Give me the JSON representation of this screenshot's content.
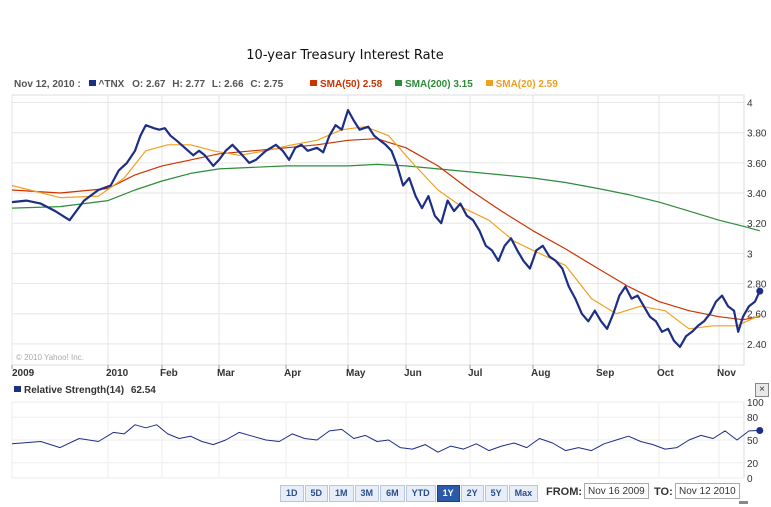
{
  "chart_data": [
    {
      "type": "line",
      "title": "10-year  Treasury Interest Rate",
      "ticker": "^TNX",
      "quote": {
        "date": "Nov 12, 2010 :",
        "open": "2.67",
        "high": "2.77",
        "low": "2.66",
        "close": "2.75"
      },
      "x_ticks": [
        "2009",
        "2010",
        "Feb",
        "Mar",
        "Apr",
        "May",
        "Jun",
        "Jul",
        "Aug",
        "Sep",
        "Oct",
        "Nov"
      ],
      "y_ticks": [
        2.4,
        2.6,
        2.8,
        3.0,
        3.2,
        3.4,
        3.6,
        3.8,
        4.0
      ],
      "y_tick_labels": [
        "2.40",
        "2.60",
        "2.80",
        "3",
        "3.20",
        "3.40",
        "3.60",
        "3.80",
        "4"
      ],
      "ylim": [
        2.26,
        4.05
      ],
      "x_range_months": [
        0,
        12
      ],
      "copyright": "© 2010 Yahoo! Inc.",
      "series": [
        {
          "name": "^TNX",
          "label": "^TNX",
          "color": "#1c2e85",
          "points": [
            [
              0,
              3.34
            ],
            [
              0.15,
              3.35
            ],
            [
              0.3,
              3.33
            ],
            [
              0.45,
              3.28
            ],
            [
              0.6,
              3.22
            ],
            [
              0.75,
              3.35
            ],
            [
              0.9,
              3.42
            ],
            [
              1.05,
              3.45
            ],
            [
              1.2,
              3.55
            ],
            [
              1.35,
              3.6
            ],
            [
              1.5,
              3.68
            ],
            [
              1.6,
              3.78
            ],
            [
              1.7,
              3.85
            ],
            [
              1.85,
              3.83
            ],
            [
              1.95,
              3.82
            ],
            [
              2.05,
              3.83
            ],
            [
              2.15,
              3.78
            ],
            [
              2.25,
              3.75
            ],
            [
              2.4,
              3.7
            ],
            [
              2.55,
              3.65
            ],
            [
              2.65,
              3.68
            ],
            [
              2.75,
              3.65
            ],
            [
              2.9,
              3.58
            ],
            [
              3.0,
              3.62
            ],
            [
              3.1,
              3.68
            ],
            [
              3.2,
              3.72
            ],
            [
              3.35,
              3.65
            ],
            [
              3.45,
              3.6
            ],
            [
              3.55,
              3.62
            ],
            [
              3.7,
              3.68
            ],
            [
              3.85,
              3.72
            ],
            [
              3.95,
              3.68
            ],
            [
              4.05,
              3.62
            ],
            [
              4.15,
              3.7
            ],
            [
              4.25,
              3.72
            ],
            [
              4.35,
              3.68
            ],
            [
              4.5,
              3.7
            ],
            [
              4.6,
              3.67
            ],
            [
              4.7,
              3.78
            ],
            [
              4.8,
              3.85
            ],
            [
              4.9,
              3.82
            ],
            [
              5.0,
              3.95
            ],
            [
              5.1,
              3.88
            ],
            [
              5.2,
              3.82
            ],
            [
              5.35,
              3.84
            ],
            [
              5.45,
              3.78
            ],
            [
              5.55,
              3.75
            ],
            [
              5.65,
              3.72
            ],
            [
              5.75,
              3.68
            ],
            [
              5.85,
              3.58
            ],
            [
              5.95,
              3.45
            ],
            [
              6.05,
              3.5
            ],
            [
              6.15,
              3.38
            ],
            [
              6.25,
              3.3
            ],
            [
              6.35,
              3.38
            ],
            [
              6.45,
              3.25
            ],
            [
              6.55,
              3.2
            ],
            [
              6.65,
              3.35
            ],
            [
              6.75,
              3.28
            ],
            [
              6.85,
              3.33
            ],
            [
              6.95,
              3.25
            ],
            [
              7.05,
              3.22
            ],
            [
              7.15,
              3.15
            ],
            [
              7.25,
              3.05
            ],
            [
              7.35,
              3.02
            ],
            [
              7.45,
              2.95
            ],
            [
              7.55,
              3.05
            ],
            [
              7.65,
              3.1
            ],
            [
              7.75,
              3.02
            ],
            [
              7.85,
              2.95
            ],
            [
              7.95,
              2.9
            ],
            [
              8.05,
              3.02
            ],
            [
              8.15,
              3.05
            ],
            [
              8.25,
              2.98
            ],
            [
              8.35,
              2.95
            ],
            [
              8.45,
              2.9
            ],
            [
              8.55,
              2.78
            ],
            [
              8.65,
              2.7
            ],
            [
              8.75,
              2.6
            ],
            [
              8.85,
              2.55
            ],
            [
              8.95,
              2.62
            ],
            [
              9.05,
              2.55
            ],
            [
              9.15,
              2.5
            ],
            [
              9.25,
              2.6
            ],
            [
              9.35,
              2.72
            ],
            [
              9.45,
              2.78
            ],
            [
              9.55,
              2.7
            ],
            [
              9.65,
              2.72
            ],
            [
              9.75,
              2.65
            ],
            [
              9.85,
              2.58
            ],
            [
              9.95,
              2.55
            ],
            [
              10.05,
              2.48
            ],
            [
              10.15,
              2.5
            ],
            [
              10.25,
              2.42
            ],
            [
              10.35,
              2.38
            ],
            [
              10.45,
              2.45
            ],
            [
              10.55,
              2.48
            ],
            [
              10.65,
              2.52
            ],
            [
              10.75,
              2.55
            ],
            [
              10.85,
              2.6
            ],
            [
              10.95,
              2.68
            ],
            [
              11.05,
              2.72
            ],
            [
              11.15,
              2.65
            ],
            [
              11.25,
              2.62
            ],
            [
              11.32,
              2.48
            ],
            [
              11.4,
              2.58
            ],
            [
              11.5,
              2.65
            ],
            [
              11.6,
              2.68
            ],
            [
              11.68,
              2.75
            ]
          ]
        },
        {
          "name": "SMA(50)",
          "label": "SMA(50)  2.58",
          "color": "#cc3300",
          "points": [
            [
              0,
              3.42
            ],
            [
              0.5,
              3.4
            ],
            [
              1.0,
              3.43
            ],
            [
              1.5,
              3.52
            ],
            [
              2.0,
              3.58
            ],
            [
              2.5,
              3.62
            ],
            [
              3.0,
              3.66
            ],
            [
              3.5,
              3.68
            ],
            [
              4.0,
              3.7
            ],
            [
              4.5,
              3.72
            ],
            [
              5.0,
              3.75
            ],
            [
              5.5,
              3.76
            ],
            [
              6.0,
              3.7
            ],
            [
              6.5,
              3.58
            ],
            [
              7.0,
              3.42
            ],
            [
              7.5,
              3.28
            ],
            [
              8.0,
              3.15
            ],
            [
              8.5,
              3.03
            ],
            [
              9.0,
              2.9
            ],
            [
              9.5,
              2.78
            ],
            [
              10.0,
              2.68
            ],
            [
              10.5,
              2.62
            ],
            [
              11.0,
              2.58
            ],
            [
              11.4,
              2.56
            ],
            [
              11.68,
              2.58
            ]
          ]
        },
        {
          "name": "SMA(200)",
          "label": "SMA(200)  3.15",
          "color": "#2e8b3a",
          "points": [
            [
              0,
              3.3
            ],
            [
              0.5,
              3.31
            ],
            [
              1.0,
              3.35
            ],
            [
              1.5,
              3.42
            ],
            [
              2.0,
              3.48
            ],
            [
              2.5,
              3.53
            ],
            [
              3.0,
              3.56
            ],
            [
              3.5,
              3.57
            ],
            [
              4.0,
              3.58
            ],
            [
              4.5,
              3.58
            ],
            [
              5.0,
              3.58
            ],
            [
              5.5,
              3.59
            ],
            [
              6.0,
              3.58
            ],
            [
              6.5,
              3.56
            ],
            [
              7.0,
              3.54
            ],
            [
              7.5,
              3.52
            ],
            [
              8.0,
              3.5
            ],
            [
              8.5,
              3.47
            ],
            [
              9.0,
              3.43
            ],
            [
              9.5,
              3.39
            ],
            [
              10.0,
              3.34
            ],
            [
              10.5,
              3.28
            ],
            [
              11.0,
              3.22
            ],
            [
              11.4,
              3.18
            ],
            [
              11.68,
              3.15
            ]
          ]
        },
        {
          "name": "SMA(20)",
          "label": "SMA(20)  2.59",
          "color": "#f0a020",
          "points": [
            [
              0,
              3.45
            ],
            [
              0.5,
              3.37
            ],
            [
              0.9,
              3.38
            ],
            [
              1.3,
              3.5
            ],
            [
              1.7,
              3.68
            ],
            [
              2.1,
              3.72
            ],
            [
              2.5,
              3.72
            ],
            [
              2.9,
              3.68
            ],
            [
              3.3,
              3.65
            ],
            [
              3.7,
              3.68
            ],
            [
              4.1,
              3.72
            ],
            [
              4.5,
              3.75
            ],
            [
              4.9,
              3.82
            ],
            [
              5.3,
              3.84
            ],
            [
              5.7,
              3.78
            ],
            [
              6.1,
              3.6
            ],
            [
              6.5,
              3.42
            ],
            [
              6.9,
              3.3
            ],
            [
              7.3,
              3.22
            ],
            [
              7.7,
              3.08
            ],
            [
              8.1,
              3.0
            ],
            [
              8.5,
              2.92
            ],
            [
              8.9,
              2.7
            ],
            [
              9.3,
              2.6
            ],
            [
              9.7,
              2.65
            ],
            [
              10.1,
              2.62
            ],
            [
              10.5,
              2.5
            ],
            [
              10.9,
              2.52
            ],
            [
              11.3,
              2.52
            ],
            [
              11.68,
              2.59
            ]
          ]
        }
      ]
    },
    {
      "type": "line",
      "title": "Relative Strength(14)",
      "label": "Relative Strength(14)",
      "value_label": "62.54",
      "last_value": 62.54,
      "ylim": [
        0,
        100
      ],
      "y_ticks": [
        0,
        20,
        50,
        80,
        100
      ],
      "series": [
        {
          "name": "Relative Strength(14)",
          "color": "#1c2e85",
          "points": [
            [
              0,
              45
            ],
            [
              0.3,
              48
            ],
            [
              0.5,
              40
            ],
            [
              0.7,
              52
            ],
            [
              0.9,
              48
            ],
            [
              1.1,
              60
            ],
            [
              1.3,
              58
            ],
            [
              1.5,
              70
            ],
            [
              1.7,
              66
            ],
            [
              1.9,
              70
            ],
            [
              2.1,
              58
            ],
            [
              2.3,
              52
            ],
            [
              2.5,
              55
            ],
            [
              2.7,
              48
            ],
            [
              2.9,
              44
            ],
            [
              3.1,
              50
            ],
            [
              3.3,
              60
            ],
            [
              3.5,
              55
            ],
            [
              3.7,
              50
            ],
            [
              3.9,
              48
            ],
            [
              4.1,
              58
            ],
            [
              4.3,
              52
            ],
            [
              4.5,
              50
            ],
            [
              4.7,
              62
            ],
            [
              4.9,
              64
            ],
            [
              5.1,
              52
            ],
            [
              5.3,
              56
            ],
            [
              5.5,
              48
            ],
            [
              5.7,
              50
            ],
            [
              5.9,
              40
            ],
            [
              6.1,
              38
            ],
            [
              6.3,
              44
            ],
            [
              6.5,
              34
            ],
            [
              6.7,
              42
            ],
            [
              6.9,
              38
            ],
            [
              7.1,
              45
            ],
            [
              7.3,
              36
            ],
            [
              7.5,
              42
            ],
            [
              7.7,
              46
            ],
            [
              7.9,
              40
            ],
            [
              8.1,
              52
            ],
            [
              8.3,
              46
            ],
            [
              8.5,
              36
            ],
            [
              8.7,
              40
            ],
            [
              8.9,
              36
            ],
            [
              9.1,
              45
            ],
            [
              9.3,
              50
            ],
            [
              9.5,
              55
            ],
            [
              9.7,
              48
            ],
            [
              9.9,
              44
            ],
            [
              10.1,
              38
            ],
            [
              10.3,
              40
            ],
            [
              10.5,
              50
            ],
            [
              10.7,
              56
            ],
            [
              10.9,
              52
            ],
            [
              11.1,
              62
            ],
            [
              11.3,
              50
            ],
            [
              11.5,
              62
            ],
            [
              11.68,
              62.54
            ]
          ]
        }
      ]
    }
  ],
  "controls": {
    "close_label": "×",
    "ranges": [
      "1D",
      "5D",
      "1M",
      "3M",
      "6M",
      "YTD",
      "1Y",
      "2Y",
      "5Y",
      "Max"
    ],
    "active_range": "1Y",
    "from_label": "FROM:",
    "from_value": "Nov 16 2009",
    "to_label": "TO:",
    "to_value": "Nov 12 2010"
  }
}
